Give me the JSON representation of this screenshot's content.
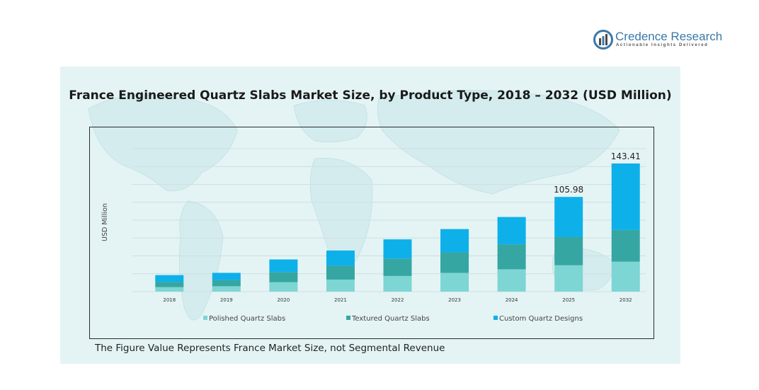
{
  "brand": {
    "name": "Credence Research",
    "tagline": "Actionable Insights Delivered"
  },
  "footnote": "The Figure Value Represents France Market Size, not Segmental Revenue",
  "colors": {
    "polished": "#7dd6d3",
    "textured": "#36a6a3",
    "custom": "#0eb0ea",
    "panel": "#e4f4f5"
  },
  "chart_data": {
    "type": "bar",
    "stacked": true,
    "title": "France Engineered Quartz Slabs Market Size, by Product Type, 2018 – 2032 (USD Million)",
    "xlabel": "",
    "ylabel": "USD Million",
    "ylim": [
      0,
      160
    ],
    "grid": true,
    "legend_position": "bottom",
    "categories": [
      "2018",
      "2019",
      "2020",
      "2021",
      "2022",
      "2023",
      "2024",
      "2025",
      "2032"
    ],
    "series": [
      {
        "name": "Polished Quartz Slabs",
        "color": "#7dd6d3",
        "values": [
          5.0,
          6.0,
          10.5,
          13.5,
          17.5,
          21.0,
          25.0,
          29.5,
          33.5
        ]
      },
      {
        "name": "Textured Quartz Slabs",
        "color": "#36a6a3",
        "values": [
          6.0,
          7.0,
          11.5,
          15.5,
          19.5,
          23.0,
          28.0,
          31.5,
          35.5
        ]
      },
      {
        "name": "Custom Quartz Designs",
        "color": "#0eb0ea",
        "values": [
          7.5,
          8.0,
          14.0,
          17.0,
          21.5,
          26.0,
          30.5,
          44.98,
          74.41
        ]
      }
    ],
    "data_labels": {
      "2025": "105.98",
      "2032": "143.41"
    }
  }
}
